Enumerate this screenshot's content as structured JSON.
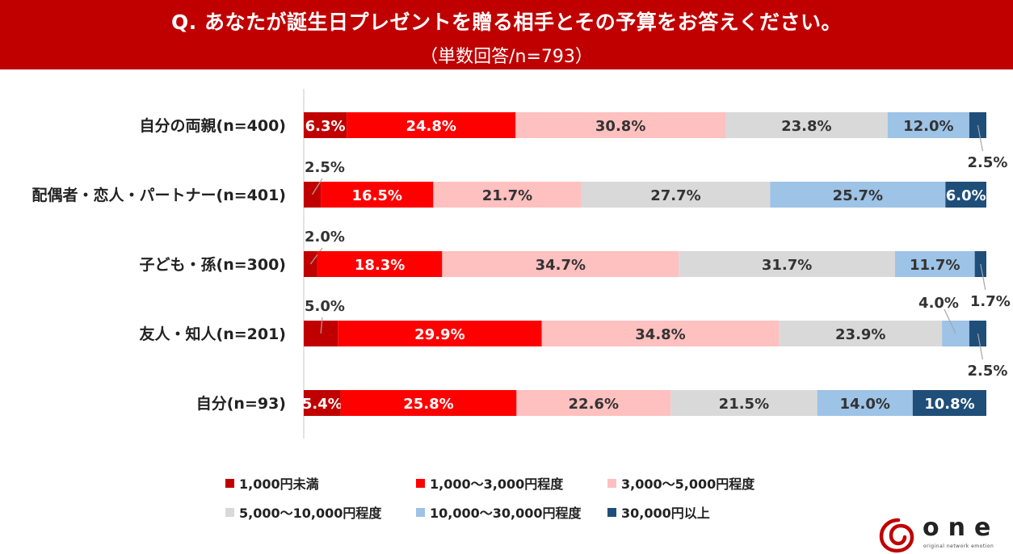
{
  "header": {
    "title": "Q. あなたが誕生日プレゼントを贈る相手とその予算をお答えください。",
    "subtitle": "（単数回答/n=793）"
  },
  "colors": {
    "header_bg": "#c00000",
    "series": [
      "#c00000",
      "#ff0000",
      "#ffc0c0",
      "#d9d9d9",
      "#9dc3e6",
      "#1f4e79"
    ]
  },
  "chart_data": {
    "type": "bar",
    "orientation": "horizontal",
    "stacked": "100%",
    "categories": [
      "自分の両親(n=400)",
      "配偶者・恋人・パートナー(n=401)",
      "子ども・孫(n=300)",
      "友人・知人(n=201)",
      "自分(n=93)"
    ],
    "series": [
      {
        "name": "1,000円未満",
        "values": [
          6.3,
          2.5,
          2.0,
          5.0,
          5.4
        ]
      },
      {
        "name": "1,000～3,000円程度",
        "values": [
          24.8,
          16.5,
          18.3,
          29.9,
          25.8
        ]
      },
      {
        "name": "3,000～5,000円程度",
        "values": [
          30.8,
          21.7,
          34.7,
          34.8,
          22.6
        ]
      },
      {
        "name": "5,000～10,000円程度",
        "values": [
          23.8,
          27.7,
          31.7,
          23.9,
          21.5
        ]
      },
      {
        "name": "10,000～30,000円程度",
        "values": [
          12.0,
          25.7,
          11.7,
          4.0,
          14.0
        ]
      },
      {
        "name": "30,000円以上",
        "values": [
          2.5,
          6.0,
          1.7,
          2.5,
          10.8
        ]
      }
    ],
    "data_labels": [
      [
        "6.3%",
        "24.8%",
        "30.8%",
        "23.8%",
        "12.0%",
        "2.5%"
      ],
      [
        "2.5%",
        "16.5%",
        "21.7%",
        "27.7%",
        "25.7%",
        "6.0%"
      ],
      [
        "2.0%",
        "18.3%",
        "34.7%",
        "31.7%",
        "11.7%",
        "1.7%"
      ],
      [
        "5.0%",
        "29.9%",
        "34.8%",
        "23.9%",
        "4.0%",
        "2.5%"
      ],
      [
        "5.4%",
        "25.8%",
        "22.6%",
        "21.5%",
        "14.0%",
        "10.8%"
      ]
    ],
    "xlim": [
      0,
      100
    ],
    "legend_position": "bottom"
  },
  "logo": {
    "text": "one",
    "tagline": "original network emotion"
  }
}
